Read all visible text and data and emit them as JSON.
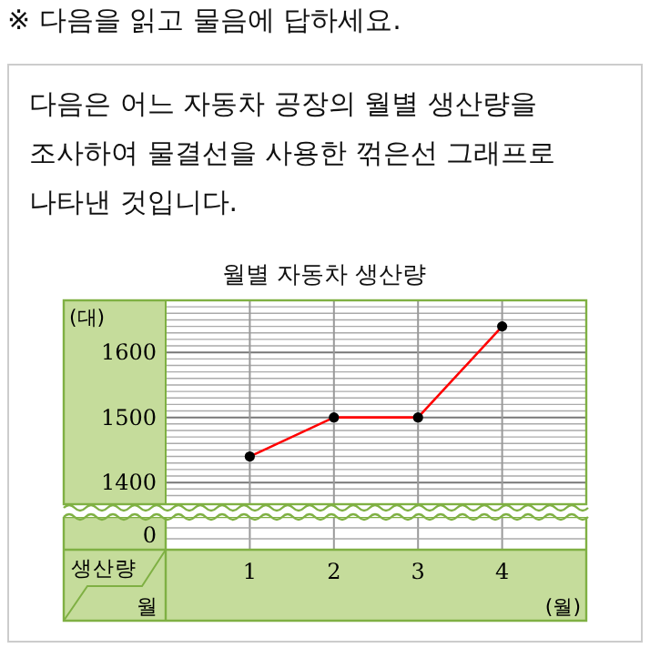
{
  "chart_data": {
    "type": "line",
    "title": "월별 자동차 생산량",
    "ylabel": "(대)",
    "xlabel": "(월)",
    "categories": [
      "1",
      "2",
      "3",
      "4"
    ],
    "series": [
      {
        "color": "#ff0000",
        "values": [
          1440,
          1500,
          1500,
          1640
        ]
      }
    ],
    "ylim": [
      1370,
      1680
    ],
    "yticks": [
      {
        "value": 1380,
        "label": null
      },
      {
        "value": 1390,
        "label": null
      },
      1400,
      {
        "value": 1410,
        "label": null
      },
      {
        "value": 1420,
        "label": null
      },
      {
        "value": 1430,
        "label": null
      },
      {
        "value": 1440,
        "label": null
      },
      {
        "value": 1450,
        "label": null
      },
      {
        "value": 1460,
        "label": null
      },
      {
        "value": 1470,
        "label": null
      },
      {
        "value": 1480,
        "label": null
      },
      {
        "value": 1490,
        "label": null
      },
      1500,
      {
        "value": 1510,
        "label": null
      },
      {
        "value": 1520,
        "label": null
      },
      {
        "value": 1530,
        "label": null
      },
      {
        "value": 1540,
        "label": null
      },
      {
        "value": 1550,
        "label": null
      },
      {
        "value": 1560,
        "label": null
      },
      {
        "value": 1570,
        "label": null
      },
      {
        "value": 1580,
        "label": null
      },
      {
        "value": 1590,
        "label": null
      },
      1600,
      {
        "value": 1610,
        "label": null
      },
      {
        "value": 1620,
        "label": null
      },
      {
        "value": 1630,
        "label": null
      },
      {
        "value": 1640,
        "label": null
      },
      {
        "value": 1650,
        "label": null
      },
      {
        "value": 1660,
        "label": null
      },
      {
        "value": 1670,
        "label": null
      }
    ],
    "grid": true,
    "marker": "circle",
    "line_style": "solid",
    "annotations": [
      "※ 다음을 읽고 물음에 답하세요.",
      "다음은 어느 자동차 공장의 월별 생산량을 조사하여 물결선을 사용한 꺾은선 그래프로 나타낸 것입니다.",
      "0",
      "생산량",
      "월"
    ]
  }
}
